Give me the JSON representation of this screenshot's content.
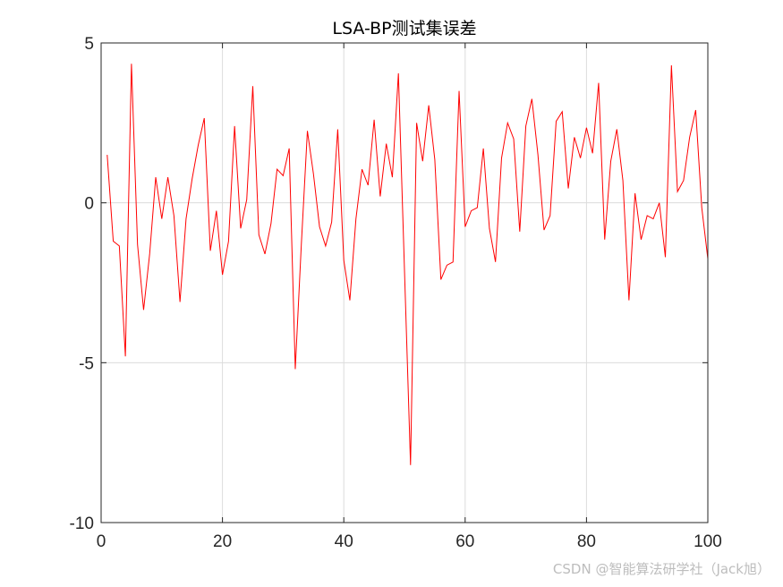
{
  "chart_data": {
    "type": "line",
    "title": "LSA-BP测试集误差",
    "xlabel": "",
    "ylabel": "",
    "xlim": [
      0,
      100
    ],
    "ylim": [
      -10,
      5
    ],
    "xticks": [
      0,
      20,
      40,
      60,
      80,
      100
    ],
    "xtick_labels": [
      "0",
      "20",
      "40",
      "60",
      "80",
      "100"
    ],
    "yticks": [
      -10,
      -5,
      0,
      5
    ],
    "ytick_labels": [
      "-10",
      "-5",
      "0",
      "5"
    ],
    "grid": true,
    "legend": "none",
    "series": [
      {
        "color": "#ff0000",
        "x": [
          1,
          2,
          3,
          4,
          5,
          6,
          7,
          8,
          9,
          10,
          11,
          12,
          13,
          14,
          15,
          16,
          17,
          18,
          19,
          20,
          21,
          22,
          23,
          24,
          25,
          26,
          27,
          28,
          29,
          30,
          31,
          32,
          33,
          34,
          35,
          36,
          37,
          38,
          39,
          40,
          41,
          42,
          43,
          44,
          45,
          46,
          47,
          48,
          49,
          50,
          51,
          52,
          53,
          54,
          55,
          56,
          57,
          58,
          59,
          60,
          61,
          62,
          63,
          64,
          65,
          66,
          67,
          68,
          69,
          70,
          71,
          72,
          73,
          74,
          75,
          76,
          77,
          78,
          79,
          80,
          81,
          82,
          83,
          84,
          85,
          86,
          87,
          88,
          89,
          90,
          91,
          92,
          93,
          94,
          95,
          96,
          97,
          98,
          99,
          100
        ],
        "values": [
          1.5,
          -1.2,
          -1.35,
          -4.8,
          4.35,
          -1.3,
          -3.35,
          -1.6,
          0.8,
          -0.5,
          0.8,
          -0.4,
          -3.1,
          -0.5,
          0.75,
          1.8,
          2.65,
          -1.5,
          -0.25,
          -2.25,
          -1.2,
          2.4,
          -0.8,
          0.1,
          3.65,
          -1.0,
          -1.6,
          -0.65,
          1.05,
          0.85,
          1.7,
          -5.2,
          -1.3,
          2.25,
          0.9,
          -0.75,
          -1.35,
          -0.6,
          2.3,
          -1.8,
          -3.05,
          -0.5,
          1.05,
          0.55,
          2.6,
          0.2,
          1.85,
          0.8,
          4.05,
          -2.1,
          -8.2,
          2.5,
          1.3,
          3.05,
          1.35,
          -2.4,
          -1.95,
          -1.85,
          3.5,
          -0.75,
          -0.25,
          -0.15,
          1.7,
          -0.8,
          -1.85,
          1.4,
          2.5,
          2.0,
          -0.9,
          2.4,
          3.25,
          1.5,
          -0.85,
          -0.4,
          2.55,
          2.85,
          0.45,
          2.05,
          1.4,
          2.35,
          1.55,
          3.75,
          -1.15,
          1.3,
          2.3,
          0.7,
          -3.05,
          0.3,
          -1.15,
          -0.4,
          -0.5,
          0.0,
          -1.7,
          4.3,
          0.35,
          0.7,
          2.05,
          2.9,
          -0.15,
          -1.75
        ]
      }
    ]
  },
  "watermark": "CSDN @智能算法研学社（Jack旭）"
}
